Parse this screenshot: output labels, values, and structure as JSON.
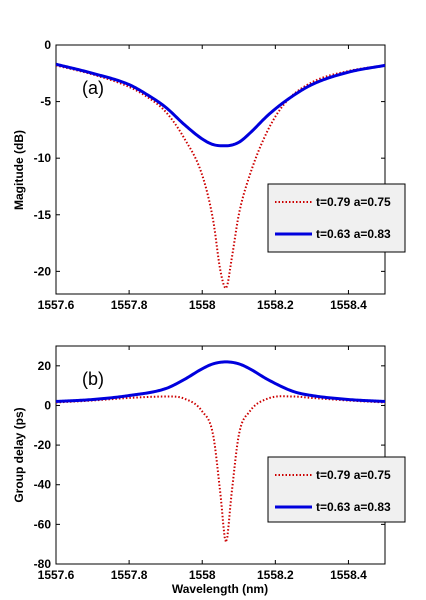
{
  "chart_data": [
    {
      "type": "line",
      "panel_label": "(a)",
      "title": "",
      "xlabel": "",
      "ylabel": "Magitude (dB)",
      "xlim": [
        1557.6,
        1558.5
      ],
      "ylim": [
        -22,
        0
      ],
      "xticks": [
        1557.6,
        1557.8,
        1558,
        1558.2,
        1558.4
      ],
      "xtick_labels": [
        "1557.6",
        "1557.8",
        "1558",
        "1558.2",
        "1558.4"
      ],
      "yticks": [
        0,
        -5,
        -10,
        -15,
        -20
      ],
      "ytick_labels": [
        "0",
        "-5",
        "-10",
        "-15",
        "-20"
      ],
      "grid": false,
      "legend_position": "right",
      "series": [
        {
          "name": "t=0.79  a=0.75",
          "color": "#cc0000",
          "style": "dotted",
          "x": [
            1557.6,
            1557.7,
            1557.8,
            1557.85,
            1557.9,
            1557.95,
            1558.0,
            1558.03,
            1558.05,
            1558.065,
            1558.08,
            1558.1,
            1558.13,
            1558.18,
            1558.23,
            1558.3,
            1558.4,
            1558.5
          ],
          "y": [
            -1.8,
            -2.6,
            -3.7,
            -4.6,
            -5.9,
            -8.2,
            -11.5,
            -15.5,
            -20.0,
            -21.5,
            -19.0,
            -15.0,
            -11.5,
            -7.5,
            -5.0,
            -3.3,
            -2.3,
            -1.8
          ]
        },
        {
          "name": "t=0.63  a=0.83",
          "color": "#0000dd",
          "style": "solid",
          "x": [
            1557.6,
            1557.7,
            1557.8,
            1557.85,
            1557.9,
            1557.95,
            1558.0,
            1558.03,
            1558.065,
            1558.1,
            1558.13,
            1558.18,
            1558.23,
            1558.3,
            1558.4,
            1558.5
          ],
          "y": [
            -1.7,
            -2.5,
            -3.5,
            -4.4,
            -5.5,
            -7.0,
            -8.3,
            -8.8,
            -8.9,
            -8.6,
            -7.8,
            -6.2,
            -4.9,
            -3.5,
            -2.4,
            -1.8
          ]
        }
      ]
    },
    {
      "type": "line",
      "panel_label": "(b)",
      "title": "",
      "xlabel": "Wavelength (nm)",
      "ylabel": "Group delay (ps)",
      "xlim": [
        1557.6,
        1558.5
      ],
      "ylim": [
        -80,
        30
      ],
      "xticks": [
        1557.6,
        1557.8,
        1558,
        1558.2,
        1558.4
      ],
      "xtick_labels": [
        "1557.6",
        "1557.8",
        "1558",
        "1558.2",
        "1558.4"
      ],
      "yticks": [
        20,
        0,
        -20,
        -40,
        -60,
        -80
      ],
      "ytick_labels": [
        "20",
        "0",
        "-20",
        "-40",
        "-60",
        "-80"
      ],
      "grid": false,
      "legend_position": "right",
      "series": [
        {
          "name": "t=0.79  a=0.75",
          "color": "#cc0000",
          "style": "dotted",
          "x": [
            1557.6,
            1557.7,
            1557.8,
            1557.9,
            1557.95,
            1558.0,
            1558.03,
            1558.05,
            1558.065,
            1558.08,
            1558.1,
            1558.13,
            1558.18,
            1558.25,
            1558.3,
            1558.4,
            1558.5
          ],
          "y": [
            1.5,
            2.5,
            3.8,
            4.5,
            3.5,
            -3.0,
            -15.0,
            -45.0,
            -69.0,
            -45.0,
            -15.0,
            -3.0,
            3.5,
            4.5,
            3.8,
            2.5,
            1.5
          ]
        },
        {
          "name": "t=0.63  a=0.83",
          "color": "#0000dd",
          "style": "solid",
          "x": [
            1557.6,
            1557.7,
            1557.8,
            1557.9,
            1557.95,
            1558.0,
            1558.03,
            1558.065,
            1558.1,
            1558.13,
            1558.18,
            1558.25,
            1558.3,
            1558.4,
            1558.5
          ],
          "y": [
            2.0,
            3.0,
            5.0,
            8.5,
            13.0,
            18.5,
            21.0,
            22.0,
            21.0,
            18.5,
            13.0,
            7.0,
            5.0,
            3.0,
            2.0
          ]
        }
      ]
    }
  ]
}
